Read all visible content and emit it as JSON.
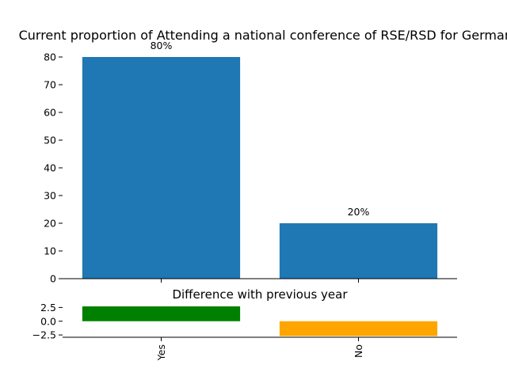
{
  "chart_data": [
    {
      "type": "bar",
      "title": "Current proportion of Attending a national conference of RSE/RSD for Germany",
      "categories": [
        "Yes",
        "No"
      ],
      "values": [
        80,
        20
      ],
      "data_labels": [
        "80%",
        "20%"
      ],
      "ylim": [
        0,
        80
      ],
      "yticks": [
        0,
        10,
        20,
        30,
        40,
        50,
        60,
        70,
        80
      ],
      "colors": [
        "#1f77b4",
        "#1f77b4"
      ],
      "grid": false
    },
    {
      "type": "bar",
      "title": "Difference with previous year",
      "categories": [
        "Yes",
        "No"
      ],
      "values": [
        2.7,
        -2.7
      ],
      "ylim": [
        -2.7,
        2.7
      ],
      "yticks": [
        -2.5,
        0.0,
        2.5
      ],
      "ytick_labels": [
        "−2.5",
        "0.0",
        "2.5"
      ],
      "colors": [
        "#008000",
        "#ffa500"
      ],
      "grid": false
    }
  ]
}
